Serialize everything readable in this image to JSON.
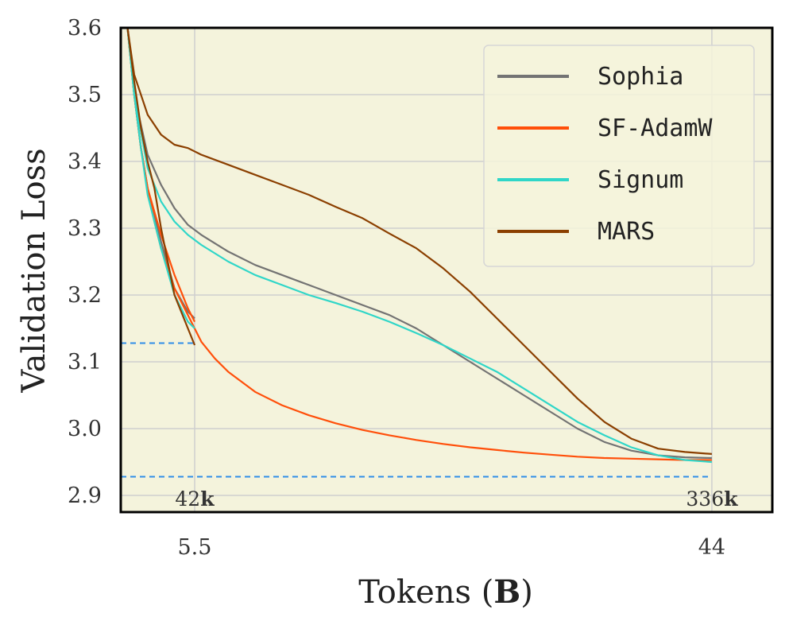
{
  "chart_data": {
    "type": "line",
    "xlabel": "Tokens",
    "xlabel_bold": "B",
    "ylabel": "Validation Loss",
    "ylim": [
      2.875,
      3.6
    ],
    "yticks": [
      2.9,
      3.0,
      3.1,
      3.2,
      3.3,
      3.4,
      3.5,
      3.6
    ],
    "ytick_labels": [
      "2.9",
      "3.0",
      "3.1",
      "3.2",
      "3.3",
      "3.4",
      "3.5",
      "3.6"
    ],
    "xlim": [
      0,
      48.5
    ],
    "xticks": [
      5.5,
      44
    ],
    "xtick_labels": [
      "5.5",
      "44"
    ],
    "grid": true,
    "background": "#f4f3dc",
    "legend_position": "top-right",
    "annotations": [
      {
        "x": 5.5,
        "num": "42",
        "suffix": "k"
      },
      {
        "x": 44,
        "num": "336",
        "suffix": "k"
      }
    ],
    "hlines": [
      {
        "y": 3.128,
        "x_end": 5.5,
        "color": "#2f8ee8"
      },
      {
        "y": 2.928,
        "x_end": 44,
        "color": "#2f8ee8"
      }
    ],
    "series": [
      {
        "name": "Sophia",
        "color": "#737373",
        "runs": [
          {
            "x": [
              0.5,
              1.0,
              1.5,
              2.0,
              3.0,
              4.0,
              5.0,
              5.5
            ],
            "y": [
              3.6,
              3.5,
              3.42,
              3.36,
              3.28,
              3.21,
              3.175,
              3.165
            ]
          },
          {
            "x": [
              0.5,
              1,
              2,
              3,
              4,
              5,
              6,
              8,
              10,
              12,
              14,
              16,
              18,
              20,
              22,
              24,
              26,
              28,
              30,
              32,
              34,
              36,
              38,
              40,
              42,
              44
            ],
            "y": [
              3.6,
              3.5,
              3.41,
              3.365,
              3.33,
              3.305,
              3.29,
              3.265,
              3.245,
              3.23,
              3.215,
              3.2,
              3.185,
              3.17,
              3.15,
              3.125,
              3.1,
              3.075,
              3.05,
              3.025,
              3.0,
              2.98,
              2.967,
              2.96,
              2.957,
              2.956
            ]
          }
        ]
      },
      {
        "name": "SF-AdamW",
        "color": "#ff4f0a",
        "runs": [
          {
            "x": [
              0.5,
              1,
              1.5,
              2,
              3,
              4,
              5,
              5.5
            ],
            "y": [
              3.6,
              3.5,
              3.42,
              3.36,
              3.29,
              3.23,
              3.18,
              3.16
            ]
          },
          {
            "x": [
              0.5,
              1,
              1.5,
              2,
              2.5,
              3,
              4,
              5,
              6,
              7,
              8,
              10,
              12,
              14,
              16,
              18,
              20,
              22,
              24,
              26,
              28,
              30,
              32,
              34,
              36,
              38,
              40,
              42,
              44
            ],
            "y": [
              3.6,
              3.5,
              3.42,
              3.36,
              3.31,
              3.27,
              3.21,
              3.17,
              3.13,
              3.105,
              3.085,
              3.055,
              3.035,
              3.02,
              3.008,
              2.998,
              2.99,
              2.983,
              2.977,
              2.972,
              2.968,
              2.964,
              2.961,
              2.958,
              2.956,
              2.955,
              2.954,
              2.953,
              2.953
            ]
          }
        ]
      },
      {
        "name": "Signum",
        "color": "#2fd6c8",
        "runs": [
          {
            "x": [
              0.5,
              1,
              1.5,
              2,
              3,
              4,
              5,
              5.5
            ],
            "y": [
              3.6,
              3.5,
              3.42,
              3.35,
              3.27,
              3.2,
              3.16,
              3.15
            ]
          },
          {
            "x": [
              0.5,
              1,
              2,
              3,
              4,
              5,
              6,
              8,
              10,
              12,
              14,
              16,
              18,
              20,
              22,
              24,
              26,
              28,
              30,
              32,
              34,
              36,
              38,
              40,
              42,
              44
            ],
            "y": [
              3.6,
              3.5,
              3.39,
              3.34,
              3.31,
              3.29,
              3.275,
              3.25,
              3.23,
              3.215,
              3.2,
              3.188,
              3.175,
              3.16,
              3.143,
              3.125,
              3.105,
              3.085,
              3.06,
              3.035,
              3.01,
              2.99,
              2.972,
              2.96,
              2.953,
              2.95
            ]
          }
        ]
      },
      {
        "name": "MARS",
        "color": "#8b3f00",
        "runs": [
          {
            "x": [
              0.5,
              1,
              1.5,
              2,
              2.5,
              3,
              4,
              5,
              5.5
            ],
            "y": [
              3.6,
              3.52,
              3.45,
              3.4,
              3.36,
              3.3,
              3.2,
              3.15,
              3.125
            ]
          },
          {
            "x": [
              0.5,
              1,
              2,
              3,
              4,
              5,
              6,
              8,
              10,
              12,
              14,
              16,
              18,
              20,
              22,
              24,
              26,
              28,
              30,
              32,
              34,
              36,
              38,
              40,
              42,
              44
            ],
            "y": [
              3.6,
              3.53,
              3.47,
              3.44,
              3.425,
              3.42,
              3.41,
              3.395,
              3.38,
              3.365,
              3.35,
              3.332,
              3.315,
              3.292,
              3.27,
              3.24,
              3.205,
              3.165,
              3.125,
              3.085,
              3.045,
              3.01,
              2.985,
              2.97,
              2.965,
              2.962
            ]
          }
        ]
      }
    ]
  }
}
